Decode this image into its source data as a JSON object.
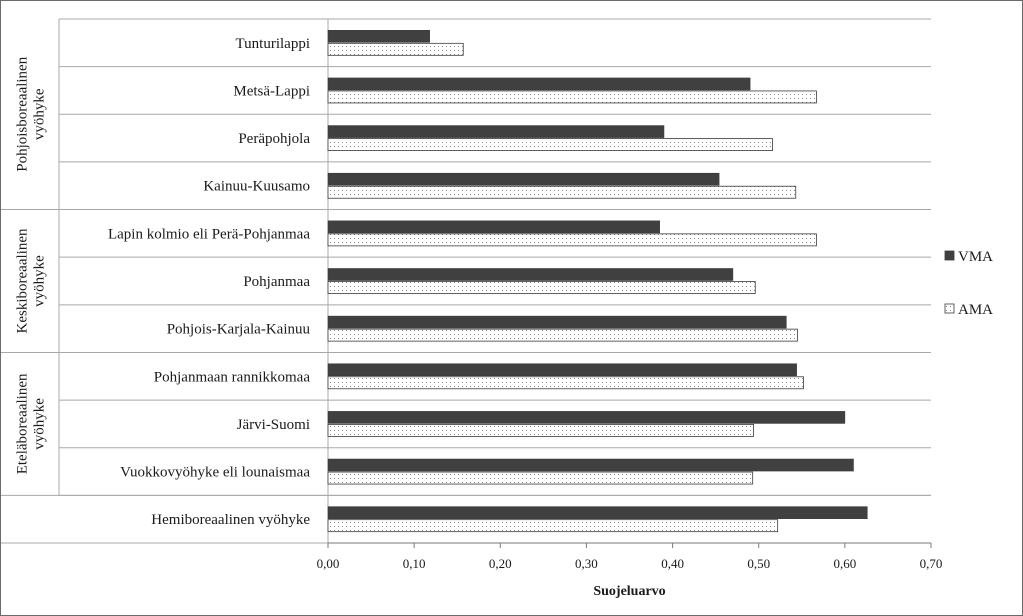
{
  "chart_data": {
    "type": "bar",
    "orientation": "horizontal",
    "categories": [
      "Tunturilappi",
      "Metsä-Lappi",
      "Peräpohjola",
      "Kainuu-Kuusamo",
      "Lapin kolmio eli Perä-Pohjanmaa",
      "Pohjanmaa",
      "Pohjois-Karjala-Kainuu",
      "Pohjanmaan rannikkomaa",
      "Järvi-Suomi",
      "Vuokkovyöhyke eli lounaismaa",
      "Hemiboreaalinen vyöhyke"
    ],
    "groups": [
      {
        "label": [
          "Pohjoisboreaalinen",
          "vyöhyke"
        ],
        "start": 0,
        "end": 3
      },
      {
        "label": [
          "Keskiboreaalinen",
          "vyöhyke"
        ],
        "start": 4,
        "end": 6
      },
      {
        "label": [
          "Eteläboreaalinen",
          "vyöhyke"
        ],
        "start": 7,
        "end": 9
      },
      {
        "label": [
          ""
        ],
        "start": 10,
        "end": 10
      }
    ],
    "series": [
      {
        "name": "VMA",
        "color": "#404040",
        "pattern": "solid",
        "values": [
          0.118,
          0.49,
          0.39,
          0.454,
          0.385,
          0.47,
          0.532,
          0.544,
          0.6,
          0.61,
          0.626
        ]
      },
      {
        "name": "AMA",
        "color": "#ffffff",
        "pattern": "dotted",
        "values": [
          0.157,
          0.567,
          0.516,
          0.543,
          0.567,
          0.496,
          0.545,
          0.552,
          0.494,
          0.493,
          0.522
        ]
      }
    ],
    "xlabel": "Suojeluarvo",
    "xlim": [
      0,
      0.7
    ],
    "xticks": [
      "0,00",
      "0,10",
      "0,20",
      "0,30",
      "0,40",
      "0,50",
      "0,60",
      "0,70"
    ],
    "grid": false,
    "legend_position": "right"
  }
}
